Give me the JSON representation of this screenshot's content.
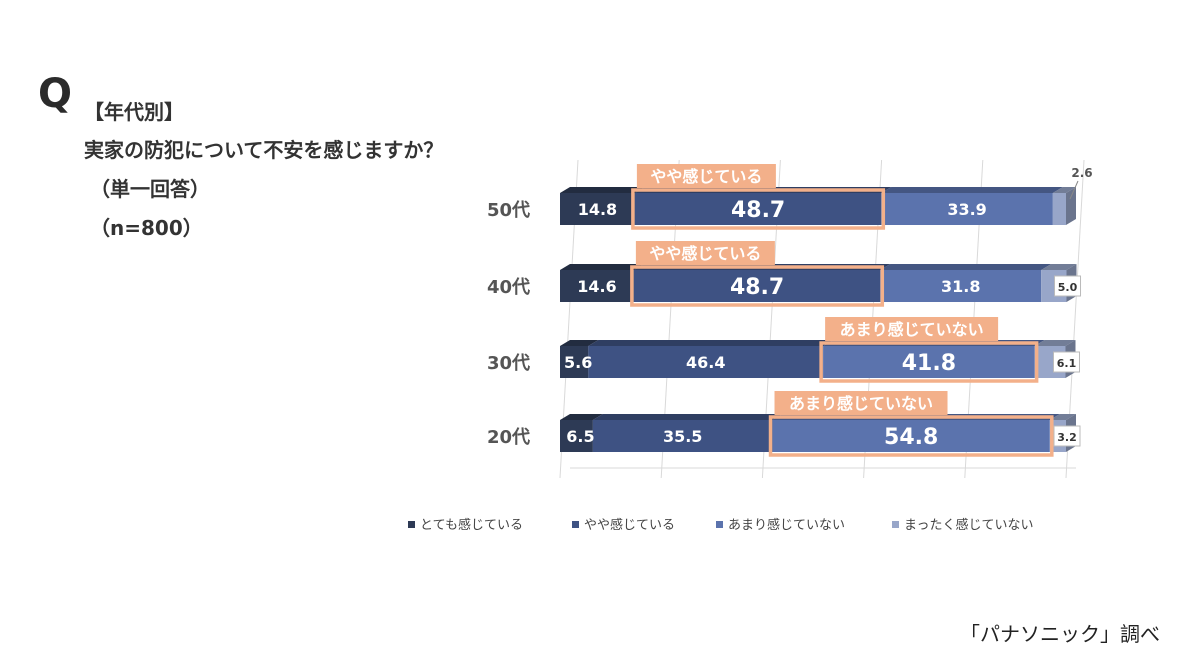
{
  "question": {
    "mark": "Q",
    "category": "【年代別】",
    "text": "実家の防犯について不安を感じますか？",
    "answer_type": "（単一回答）",
    "sample": "（n=800）"
  },
  "source": "「パナソニック」調べ",
  "colors": {
    "series": [
      "#2d3a55",
      "#3e5283",
      "#5b73ad",
      "#98a6c9"
    ],
    "highlight": "#f3b08a",
    "grid": "#d9d9d9",
    "label": "#ffffff",
    "axis_text": "#555555"
  },
  "chart_data": {
    "type": "bar",
    "orientation": "horizontal",
    "stacked": true,
    "percent_stacked": true,
    "categories": [
      "50代",
      "40代",
      "30代",
      "20代"
    ],
    "series": [
      {
        "name": "とても感じている",
        "values": [
          14.8,
          14.6,
          5.6,
          6.5
        ]
      },
      {
        "name": "やや感じている",
        "values": [
          48.7,
          48.7,
          46.4,
          35.5
        ]
      },
      {
        "name": "あまり感じていない",
        "values": [
          33.9,
          31.8,
          41.8,
          54.8
        ]
      },
      {
        "name": "まったく感じていない",
        "values": [
          2.6,
          5.0,
          6.1,
          3.2
        ]
      }
    ],
    "highlights": [
      {
        "category": "50代",
        "series": "やや感じている",
        "label": "やや感じている"
      },
      {
        "category": "40代",
        "series": "やや感じている",
        "label": "やや感じている"
      },
      {
        "category": "30代",
        "series": "あまり感じていない",
        "label": "あまり感じていない"
      },
      {
        "category": "20代",
        "series": "あまり感じていない",
        "label": "あまり感じていない"
      }
    ],
    "xlim": [
      0,
      100
    ],
    "grid": true,
    "legend_position": "bottom"
  }
}
